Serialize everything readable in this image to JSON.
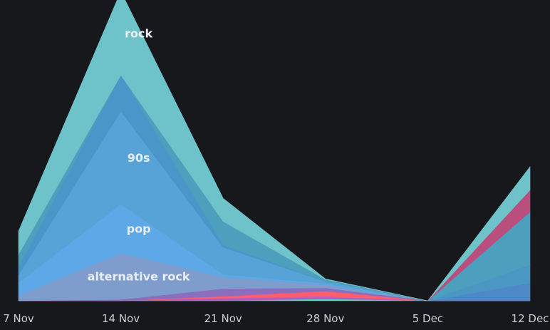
{
  "chart_data": {
    "type": "area",
    "stacked": true,
    "x": [
      "7 Nov",
      "14 Nov",
      "21 Nov",
      "28 Nov",
      "5 Dec",
      "12 Dec"
    ],
    "series": [
      {
        "name": "",
        "color": "#5fd0c0",
        "values": [
          0,
          0,
          0,
          1.5,
          0,
          0
        ]
      },
      {
        "name": "",
        "color": "#b45ec0",
        "values": [
          0,
          0,
          2,
          2,
          0,
          0
        ]
      },
      {
        "name": "",
        "color": "#ff5f6b",
        "values": [
          0,
          0,
          1.5,
          4,
          0,
          0
        ]
      },
      {
        "name": "",
        "color": "#8a6fbf",
        "values": [
          0,
          1,
          6,
          2.5,
          0,
          0
        ]
      },
      {
        "name": "",
        "color": "#4f88c6",
        "values": [
          0,
          0,
          0,
          0,
          0,
          14
        ]
      },
      {
        "name": "alternative rock",
        "color": "#7f9dcc",
        "values": [
          4,
          36,
          9,
          2.5,
          0,
          0
        ]
      },
      {
        "name": "",
        "color": "#4a97c4",
        "values": [
          0,
          0,
          0,
          0,
          0,
          14
        ]
      },
      {
        "name": "pop",
        "color": "#5fa8e8",
        "values": [
          10,
          38,
          2,
          1,
          0,
          0
        ]
      },
      {
        "name": "90s",
        "color": "#57a3d8",
        "values": [
          6,
          72,
          21,
          1.5,
          0,
          0
        ]
      },
      {
        "name": "",
        "color": "#4a96c8",
        "values": [
          6,
          28,
          2,
          0,
          0,
          0
        ]
      },
      {
        "name": "",
        "color": "#4c9fbd",
        "values": [
          10,
          0,
          18,
          1.5,
          0,
          41
        ]
      },
      {
        "name": "",
        "color": "#ba4f7e",
        "values": [
          0,
          0,
          0,
          0,
          0,
          17
        ]
      },
      {
        "name": "rock",
        "color": "#6ec3cb",
        "values": [
          18,
          65,
          18,
          0.5,
          0,
          18
        ]
      }
    ],
    "ylim": [
      0,
      230
    ],
    "grid": false,
    "legend": "none"
  }
}
